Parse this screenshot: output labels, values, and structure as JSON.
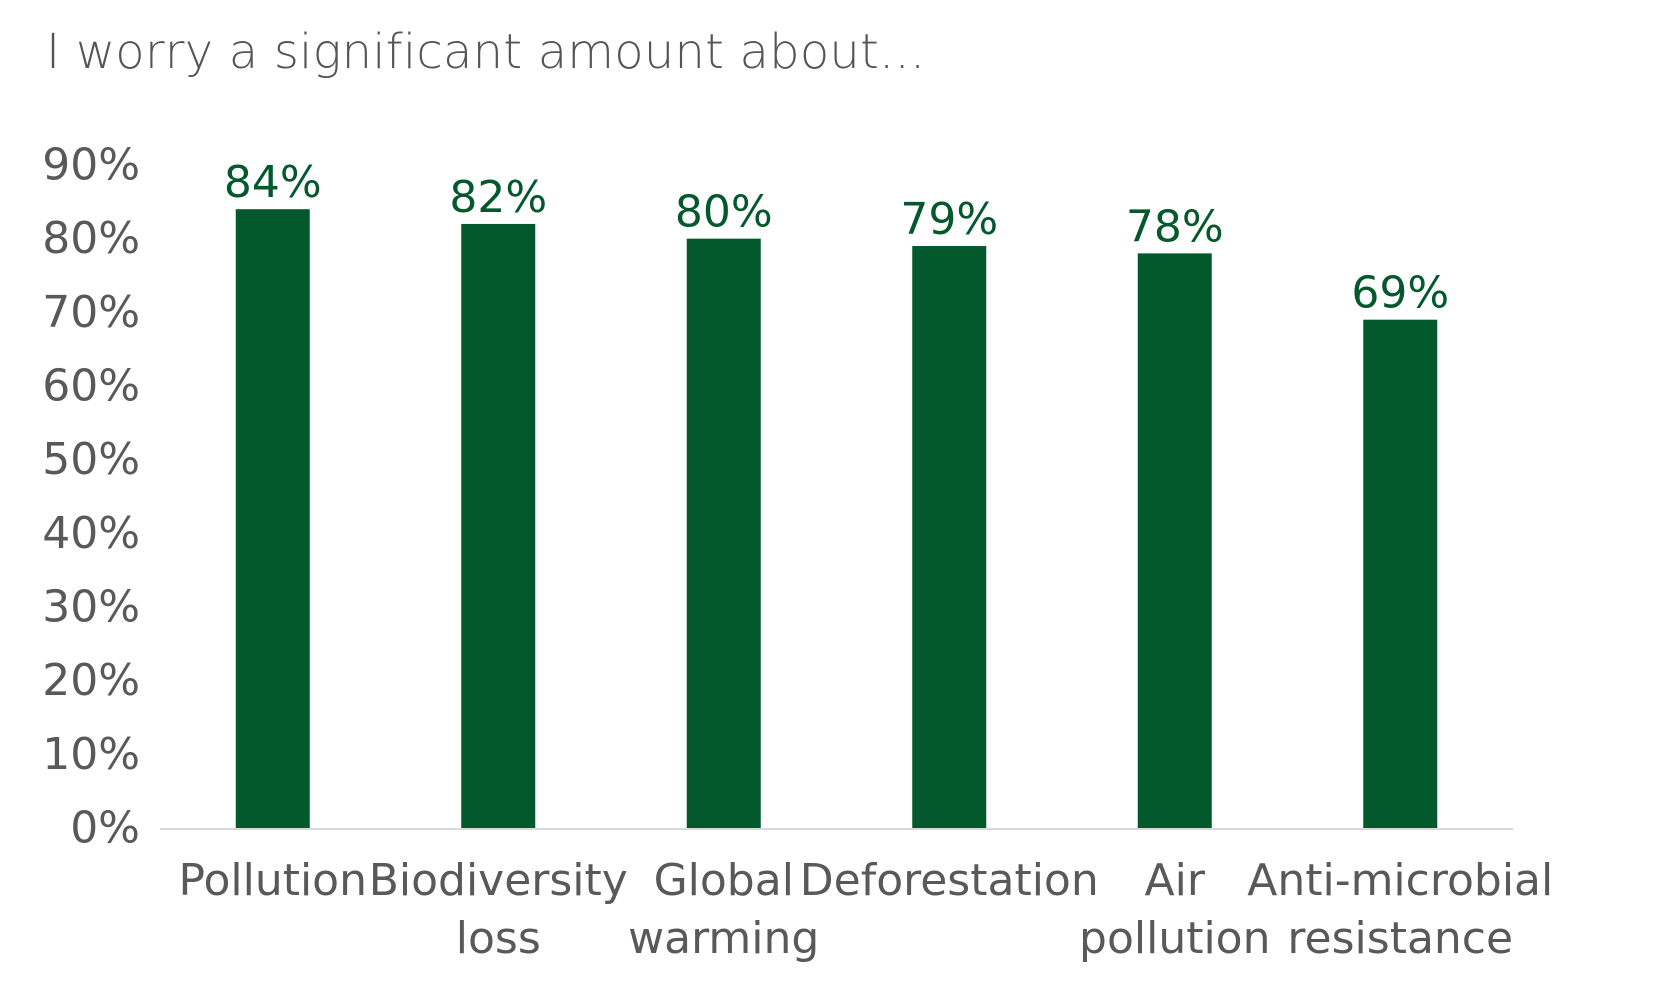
{
  "chart_data": {
    "type": "bar",
    "title": "I worry a significant amount about...",
    "categories": [
      [
        "Pollution"
      ],
      [
        "Biodiversity",
        "loss"
      ],
      [
        "Global",
        "warming"
      ],
      [
        "Deforestation"
      ],
      [
        "Air",
        "pollution"
      ],
      [
        "Anti-microbial",
        "resistance"
      ]
    ],
    "values": [
      84,
      82,
      80,
      79,
      78,
      69
    ],
    "data_labels": [
      "84%",
      "82%",
      "80%",
      "79%",
      "78%",
      "69%"
    ],
    "y_ticks": [
      "0%",
      "10%",
      "20%",
      "30%",
      "40%",
      "50%",
      "60%",
      "70%",
      "80%",
      "90%"
    ],
    "ylim": [
      0,
      90
    ],
    "xlabel": "",
    "ylabel": "",
    "grid": false,
    "legend": "none",
    "colors": {
      "bar": "#03582C",
      "label": "#03582C",
      "axis": "#D9D9D9",
      "text": "#595959"
    }
  }
}
